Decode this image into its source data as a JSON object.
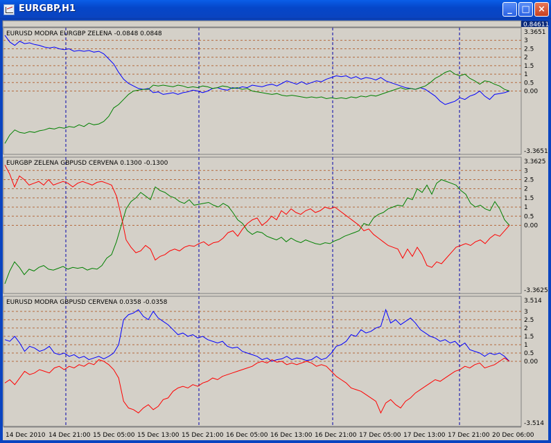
{
  "window": {
    "title": "EURGBP,H1",
    "buttons": {
      "minimize": "_",
      "maximize": "□",
      "close": "×"
    }
  },
  "top_strip": {
    "price": "0.84611"
  },
  "colors": {
    "blue": "#0000ff",
    "green": "#008000",
    "red": "#ff0000",
    "grid": "#b4693c",
    "vgrid": "#0000aa",
    "background": "#d4d0c8"
  },
  "panels": [
    {
      "label": "EURUSD MODRA   EURGBP ZELENA  -0.0848 0.0848",
      "top_value": "3.3651",
      "bottom_value": "-3.3651",
      "levels": [
        "3",
        "2.5",
        "2",
        "1.5",
        "1",
        "0.5",
        "0.00"
      ],
      "series": [
        {
          "name": "EURUSD MODRA",
          "color": "blue",
          "values": [
            3.3,
            2.9,
            2.7,
            2.95,
            2.8,
            2.85,
            2.75,
            2.7,
            2.6,
            2.55,
            2.6,
            2.5,
            2.45,
            2.5,
            2.35,
            2.4,
            2.35,
            2.4,
            2.3,
            2.35,
            2.2,
            1.9,
            1.6,
            1.1,
            0.7,
            0.45,
            0.3,
            0.15,
            0.1,
            0.15,
            -0.1,
            -0.05,
            -0.2,
            -0.15,
            -0.1,
            -0.2,
            -0.1,
            -0.05,
            0.05,
            0.0,
            -0.1,
            0.0,
            0.15,
            0.2,
            0.1,
            0.05,
            0.2,
            0.15,
            0.25,
            0.2,
            0.35,
            0.3,
            0.25,
            0.35,
            0.4,
            0.3,
            0.45,
            0.6,
            0.5,
            0.4,
            0.55,
            0.4,
            0.5,
            0.6,
            0.55,
            0.7,
            0.8,
            0.9,
            0.85,
            0.9,
            0.75,
            0.85,
            0.7,
            0.8,
            0.75,
            0.65,
            0.8,
            0.6,
            0.5,
            0.4,
            0.3,
            0.2,
            0.15,
            0.1,
            0.2,
            0.1,
            -0.1,
            -0.3,
            -0.6,
            -0.8,
            -0.7,
            -0.6,
            -0.4,
            -0.5,
            -0.3,
            -0.2,
            0.0,
            -0.3,
            -0.5,
            -0.2,
            -0.15,
            -0.1,
            0.0
          ]
        },
        {
          "name": "EURGBP ZELENA",
          "color": "green",
          "values": [
            -3.1,
            -2.6,
            -2.3,
            -2.45,
            -2.5,
            -2.4,
            -2.45,
            -2.35,
            -2.3,
            -2.2,
            -2.25,
            -2.15,
            -2.2,
            -2.1,
            -2.15,
            -2.0,
            -2.1,
            -1.9,
            -2.0,
            -1.95,
            -1.8,
            -1.5,
            -1.0,
            -0.8,
            -0.5,
            -0.2,
            0.0,
            0.05,
            0.1,
            0.1,
            0.35,
            0.3,
            0.35,
            0.3,
            0.25,
            0.35,
            0.3,
            0.2,
            0.25,
            0.2,
            0.3,
            0.25,
            0.15,
            0.2,
            0.3,
            0.25,
            0.15,
            0.2,
            0.1,
            0.15,
            0.0,
            -0.05,
            -0.1,
            -0.15,
            -0.2,
            -0.15,
            -0.25,
            -0.3,
            -0.25,
            -0.3,
            -0.35,
            -0.4,
            -0.35,
            -0.4,
            -0.35,
            -0.45,
            -0.4,
            -0.45,
            -0.4,
            -0.45,
            -0.35,
            -0.4,
            -0.3,
            -0.35,
            -0.25,
            -0.3,
            -0.2,
            -0.1,
            0.0,
            0.1,
            0.2,
            0.1,
            0.15,
            0.1,
            0.2,
            0.3,
            0.5,
            0.75,
            0.9,
            1.1,
            1.2,
            1.0,
            0.9,
            1.0,
            0.75,
            0.6,
            0.4,
            0.6,
            0.55,
            0.4,
            0.3,
            0.1,
            0.0
          ]
        }
      ]
    },
    {
      "label": "EURGBP ZELENA   GBPUSD CERVENA  0.1300 -0.1300",
      "top_value": "3.3625",
      "bottom_value": "-3.3625",
      "levels": [
        "3",
        "2.5",
        "2",
        "1.5",
        "1",
        "0.5",
        "0.00"
      ],
      "series": [
        {
          "name": "EURGBP ZELENA",
          "color": "green",
          "values": [
            -3.2,
            -2.5,
            -2.0,
            -2.3,
            -2.7,
            -2.4,
            -2.5,
            -2.3,
            -2.2,
            -2.4,
            -2.45,
            -2.35,
            -2.25,
            -2.4,
            -2.3,
            -2.35,
            -2.3,
            -2.45,
            -2.35,
            -2.4,
            -2.2,
            -1.8,
            -1.6,
            -0.9,
            0.0,
            0.9,
            1.3,
            1.5,
            1.8,
            1.6,
            1.4,
            2.1,
            1.9,
            1.8,
            1.6,
            1.5,
            1.3,
            1.2,
            1.4,
            1.1,
            1.15,
            1.2,
            1.25,
            1.1,
            1.0,
            1.2,
            1.05,
            0.7,
            0.3,
            0.1,
            -0.3,
            -0.5,
            -0.35,
            -0.4,
            -0.6,
            -0.7,
            -0.8,
            -0.65,
            -0.9,
            -0.7,
            -0.85,
            -0.95,
            -0.8,
            -0.9,
            -1.0,
            -1.05,
            -0.95,
            -1.0,
            -0.85,
            -0.75,
            -0.6,
            -0.5,
            -0.4,
            -0.3,
            0.1,
            0.0,
            0.4,
            0.6,
            0.7,
            0.9,
            1.0,
            1.1,
            1.05,
            1.5,
            1.4,
            2.0,
            1.8,
            2.2,
            1.7,
            2.3,
            2.5,
            2.4,
            2.3,
            2.2,
            1.9,
            1.7,
            1.2,
            1.0,
            1.1,
            0.9,
            0.8,
            1.3,
            0.9,
            0.3,
            0.0
          ]
        },
        {
          "name": "GBPUSD CERVENA",
          "color": "red",
          "values": [
            3.3,
            2.8,
            2.1,
            2.7,
            2.5,
            2.2,
            2.3,
            2.4,
            2.2,
            2.5,
            2.2,
            2.3,
            2.4,
            2.3,
            2.1,
            2.3,
            2.4,
            2.3,
            2.2,
            2.35,
            2.4,
            2.3,
            2.2,
            1.6,
            0.5,
            -0.8,
            -1.2,
            -1.5,
            -1.4,
            -1.1,
            -1.3,
            -1.9,
            -1.7,
            -1.6,
            -1.4,
            -1.3,
            -1.4,
            -1.2,
            -1.1,
            -1.15,
            -1.0,
            -0.9,
            -1.1,
            -0.95,
            -0.9,
            -0.7,
            -0.4,
            -0.3,
            -0.6,
            -0.2,
            0.1,
            0.3,
            0.4,
            0.0,
            0.2,
            0.5,
            0.3,
            0.8,
            0.6,
            0.9,
            0.7,
            0.6,
            0.8,
            0.9,
            0.7,
            0.8,
            1.0,
            0.9,
            1.0,
            0.8,
            0.6,
            0.4,
            0.2,
            0.0,
            -0.3,
            -0.2,
            -0.5,
            -0.7,
            -0.9,
            -1.1,
            -1.2,
            -1.3,
            -1.8,
            -1.3,
            -1.7,
            -1.2,
            -1.6,
            -2.2,
            -2.3,
            -2.0,
            -2.1,
            -1.8,
            -1.5,
            -1.2,
            -1.1,
            -1.0,
            -1.1,
            -0.9,
            -0.8,
            -1.0,
            -0.7,
            -0.5,
            -0.6,
            -0.3,
            0.0
          ]
        }
      ]
    },
    {
      "label": "EURUSD MODRA   GBPUSD CERVENA  0.0358 -0.0358",
      "top_value": "3.514",
      "bottom_value": "-3.514",
      "levels": [
        "3",
        "2.5",
        "2",
        "1.5",
        "1",
        "0.5",
        "0.00"
      ],
      "series": [
        {
          "name": "EURUSD MODRA",
          "color": "blue",
          "values": [
            1.3,
            1.2,
            1.5,
            1.1,
            0.6,
            0.9,
            0.8,
            0.6,
            0.7,
            0.9,
            0.5,
            0.4,
            0.5,
            0.3,
            0.4,
            0.2,
            0.3,
            0.1,
            0.2,
            0.3,
            0.15,
            0.3,
            0.5,
            1.0,
            2.5,
            2.8,
            2.9,
            3.1,
            2.7,
            2.5,
            3.0,
            2.6,
            2.4,
            2.2,
            1.9,
            1.6,
            1.7,
            1.5,
            1.6,
            1.4,
            1.5,
            1.3,
            1.2,
            1.1,
            1.2,
            0.9,
            0.8,
            0.85,
            0.6,
            0.5,
            0.4,
            0.3,
            0.1,
            0.2,
            0.0,
            0.1,
            0.15,
            0.3,
            0.1,
            0.2,
            0.15,
            0.05,
            0.1,
            0.3,
            0.1,
            0.2,
            0.5,
            0.9,
            1.0,
            1.2,
            1.6,
            1.5,
            1.9,
            1.7,
            1.8,
            2.0,
            2.1,
            3.1,
            2.3,
            2.5,
            2.2,
            2.4,
            2.6,
            2.3,
            1.9,
            1.7,
            1.5,
            1.4,
            1.2,
            1.3,
            1.1,
            1.2,
            0.9,
            1.1,
            0.7,
            0.6,
            0.5,
            0.3,
            0.5,
            0.4,
            0.5,
            0.3,
            0.0
          ]
        },
        {
          "name": "GBPUSD CERVENA",
          "color": "red",
          "values": [
            -1.3,
            -1.1,
            -1.4,
            -1.0,
            -0.6,
            -0.8,
            -0.7,
            -0.5,
            -0.6,
            -0.7,
            -0.4,
            -0.3,
            -0.5,
            -0.3,
            -0.4,
            -0.2,
            -0.3,
            -0.1,
            -0.2,
            0.1,
            0.0,
            -0.2,
            -0.5,
            -1.0,
            -2.4,
            -2.8,
            -2.9,
            -3.1,
            -2.8,
            -2.6,
            -2.9,
            -2.7,
            -2.3,
            -2.2,
            -1.8,
            -1.6,
            -1.5,
            -1.6,
            -1.4,
            -1.5,
            -1.3,
            -1.2,
            -1.0,
            -1.1,
            -0.9,
            -0.8,
            -0.7,
            -0.6,
            -0.5,
            -0.4,
            -0.3,
            -0.1,
            0.0,
            -0.1,
            0.1,
            -0.05,
            0.0,
            -0.2,
            -0.1,
            -0.2,
            -0.1,
            0.0,
            -0.1,
            -0.3,
            -0.2,
            -0.3,
            -0.6,
            -0.9,
            -1.1,
            -1.3,
            -1.6,
            -1.7,
            -1.8,
            -2.0,
            -2.2,
            -2.4,
            -3.1,
            -2.5,
            -2.3,
            -2.6,
            -2.8,
            -2.4,
            -2.2,
            -1.9,
            -1.7,
            -1.5,
            -1.3,
            -1.1,
            -1.2,
            -1.0,
            -0.8,
            -0.6,
            -0.5,
            -0.3,
            -0.4,
            -0.2,
            -0.1,
            -0.4,
            -0.3,
            -0.2,
            0.0,
            0.2,
            0.0
          ]
        }
      ]
    }
  ],
  "time_axis": [
    "14 Dec 2010",
    "14 Dec 21:00",
    "15 Dec 05:00",
    "15 Dec 13:00",
    "15 Dec 21:00",
    "16 Dec 05:00",
    "16 Dec 13:00",
    "16 Dec 21:00",
    "17 Dec 05:00",
    "17 Dec 13:00",
    "17 Dec 21:00",
    "20 Dec 06:00"
  ]
}
